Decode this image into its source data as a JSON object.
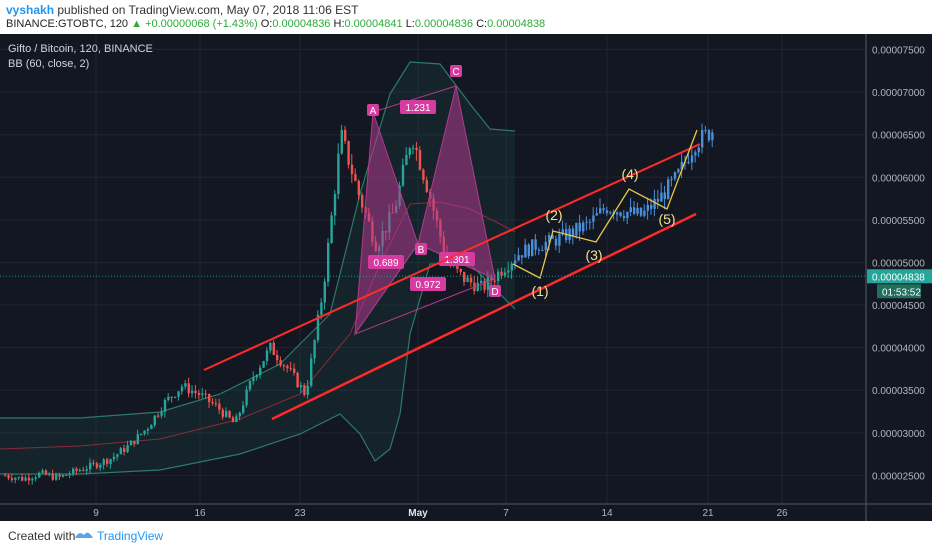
{
  "header": {
    "author": "vyshakh",
    "published_text": "published on TradingView.com, May 07, 2018 11:06 EST",
    "symbol": "BINANCE:GTOBTC, 120",
    "change_text": "+0.00000068 (+1.43%)",
    "o_label": "O:",
    "o_value": "0.00004836",
    "h_label": "H:",
    "h_value": "0.00004841",
    "l_label": "L:",
    "l_value": "0.00004836",
    "c_label": "C:",
    "c_value": "0.00004838"
  },
  "legend": {
    "title": "Gifto / Bitcoin, 120, BINANCE",
    "indicator": "BB (60, close, 2)"
  },
  "footer": {
    "created_with": "Created with",
    "brand": "TradingView"
  },
  "colors": {
    "background": "#131722",
    "candle_up": "#26a69a",
    "candle_down": "#ef5350",
    "highlight_candles": "#4a90d9",
    "trendline": "#ff2a2a",
    "pattern_fill": "#b03a8c",
    "pattern_label": "#d63ca0",
    "wave_line": "#e6c84a",
    "bb_band": "#2d7a68",
    "price_tag": "#26a69a"
  },
  "chart_data": {
    "type": "candlestick",
    "ylim": [
      2e-05,
      7.6e-05
    ],
    "y_ticks": [
      "0.00002500",
      "0.00003000",
      "0.00003500",
      "0.00004000",
      "0.00004500",
      "0.00005000",
      "0.00005500",
      "0.00006000",
      "0.00006500",
      "0.00007000",
      "0.00007500"
    ],
    "x_ticks": [
      "9",
      "16",
      "23",
      "May",
      "7",
      "14",
      "21",
      "26"
    ],
    "last_price": "0.00004838",
    "countdown": "01:53:52",
    "close_series": [
      2.5e-05,
      2.46e-05,
      2.52e-05,
      2.47e-05,
      2.55e-05,
      2.62e-05,
      2.7e-05,
      2.85e-05,
      3.05e-05,
      3.35e-05,
      3.55e-05,
      3.45e-05,
      3.3e-05,
      3.1e-05,
      3.65e-05,
      4e-05,
      3.75e-05,
      3.45e-05,
      4.7e-05,
      6.5e-05,
      5.8e-05,
      5.2e-05,
      5.6e-05,
      6.5e-05,
      5.8e-05,
      5e-05,
      4.8e-05,
      4.7e-05,
      4.9e-05,
      5.1e-05,
      5.2e-05,
      5.25e-05,
      5.35e-05,
      5.45e-05,
      5.65e-05,
      5.6e-05,
      5.55e-05,
      5.75e-05,
      6e-05,
      6.4e-05,
      6.55e-05
    ],
    "harmonic_pattern": {
      "points": [
        "A",
        "B",
        "C",
        "D"
      ],
      "ratios": [
        "1.231",
        "0.689",
        "1.301",
        "0.972"
      ]
    },
    "elliott_waves": [
      "(1)",
      "(2)",
      "(3)",
      "(4)",
      "(5)"
    ]
  }
}
